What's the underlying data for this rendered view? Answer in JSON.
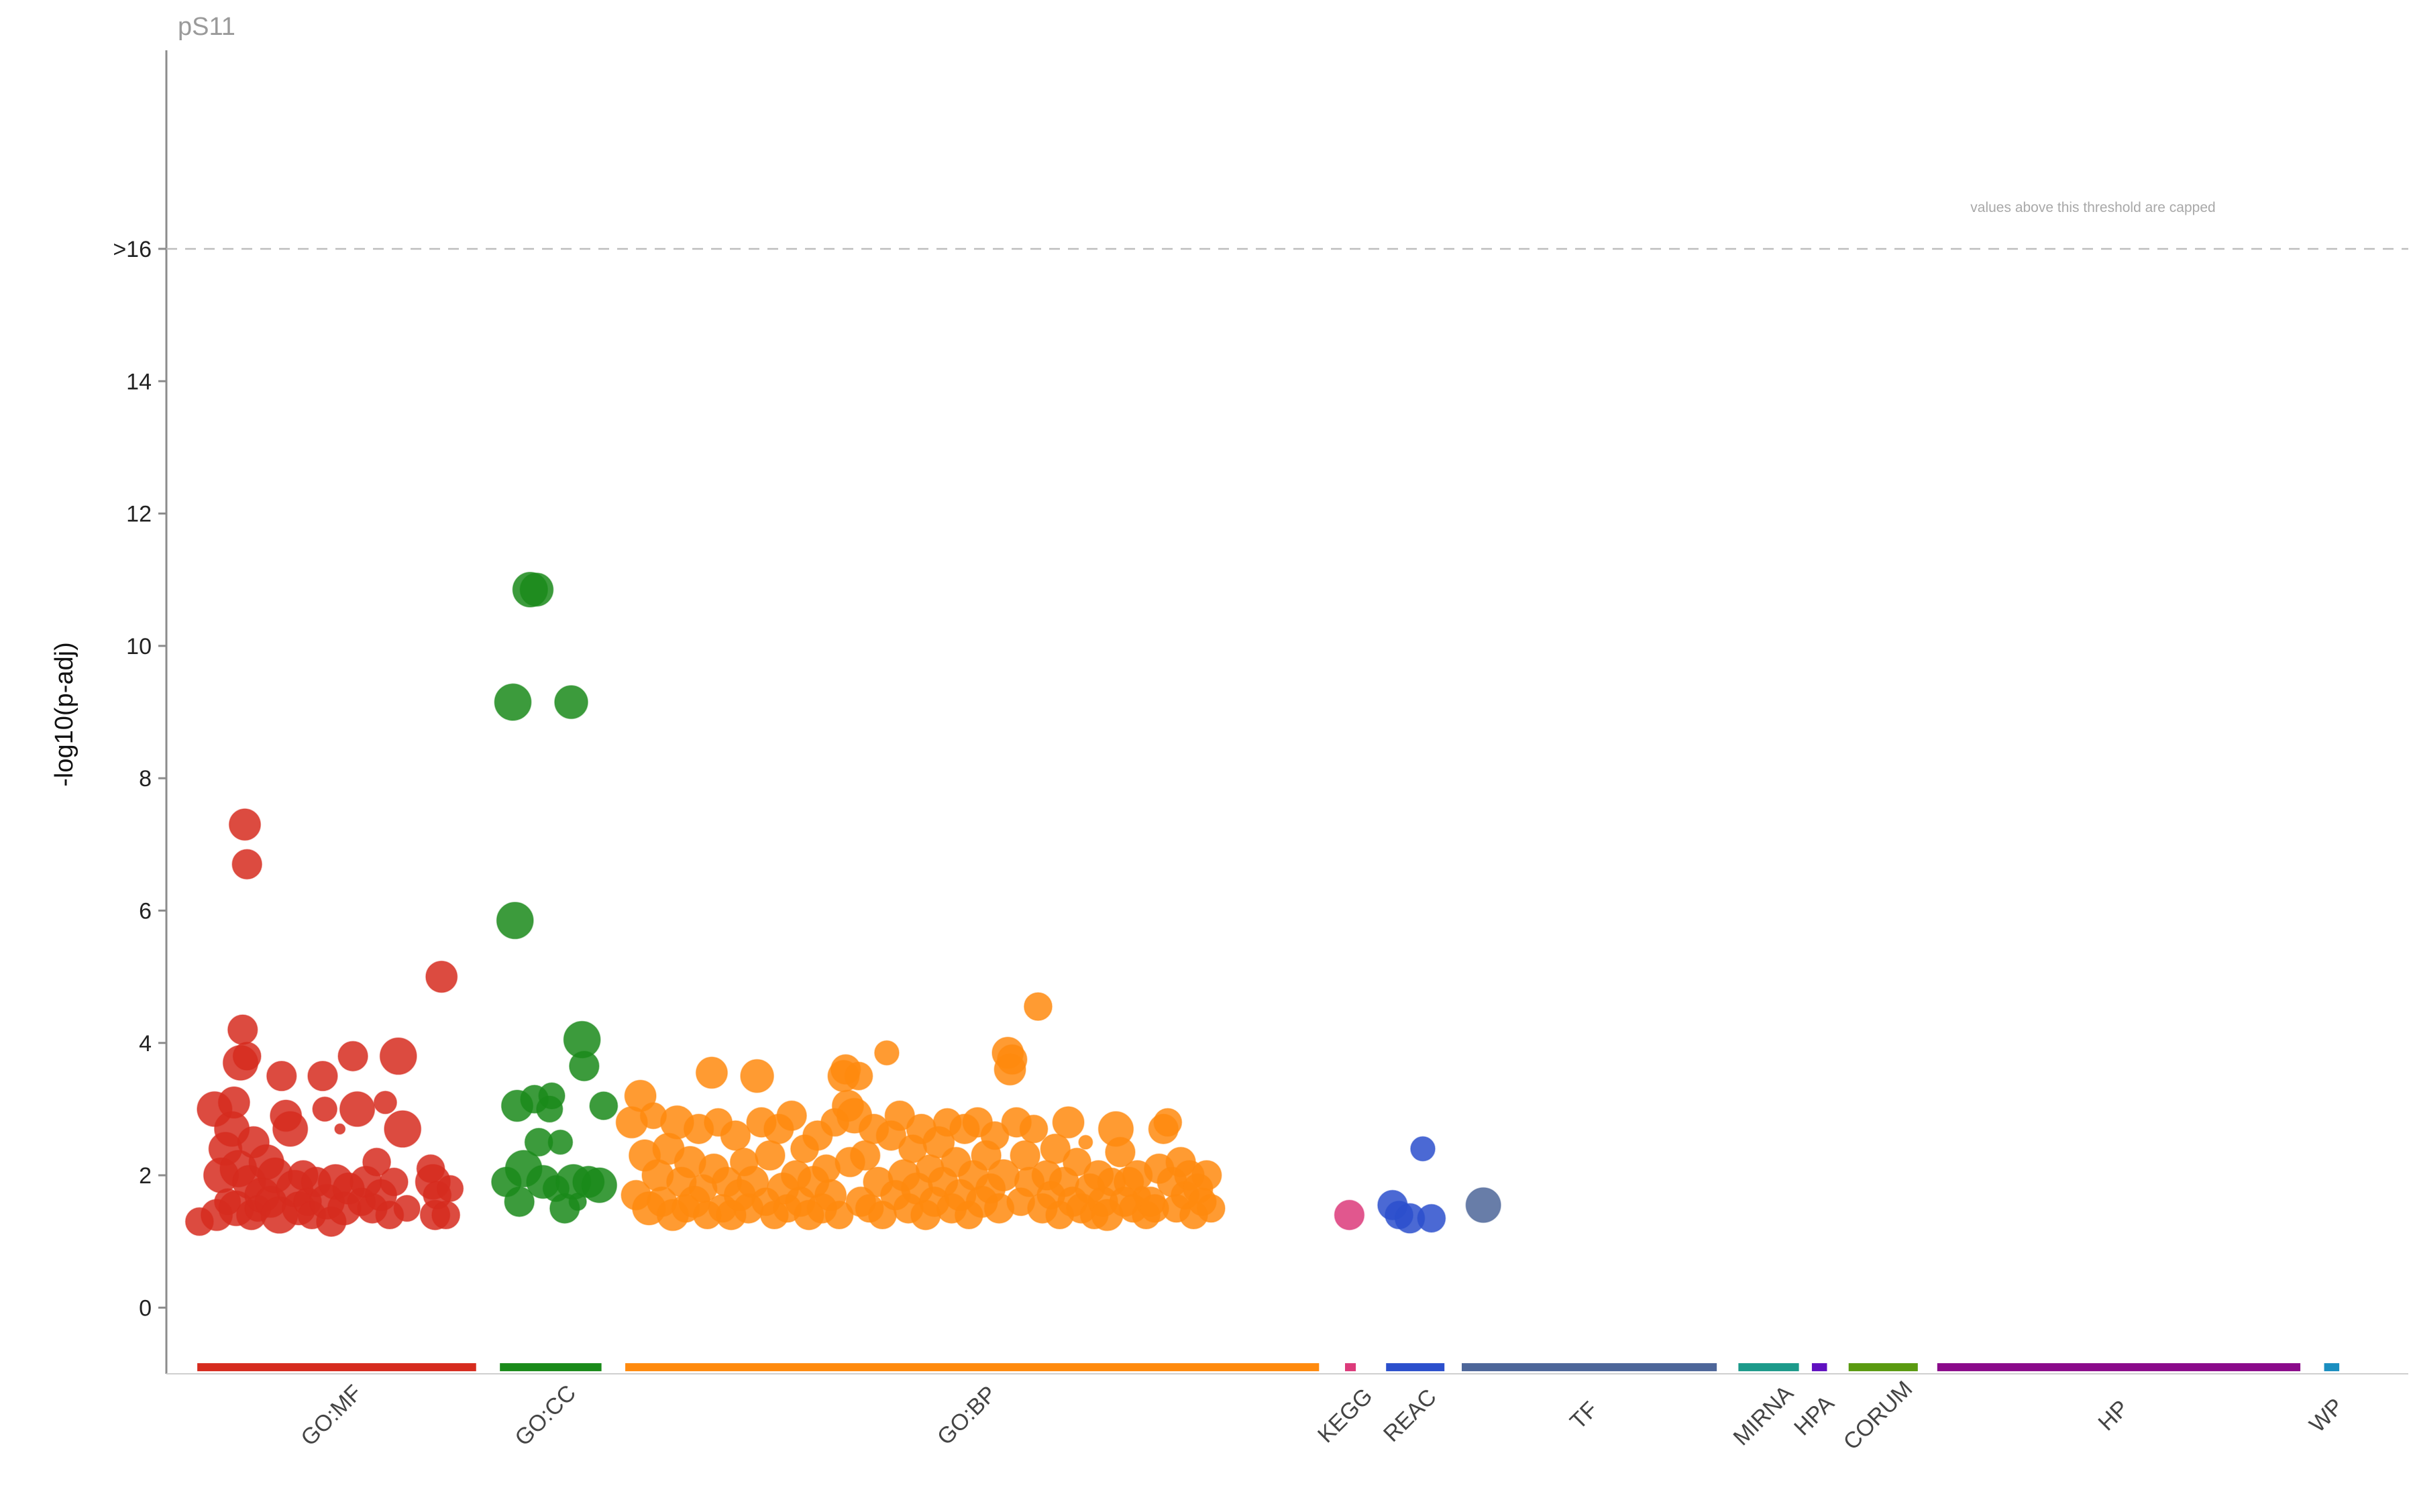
{
  "chart_data": {
    "type": "scatter",
    "title": "pS11",
    "ylabel": "-log10(p-adj)",
    "xlabel": "",
    "ylim": [
      -1,
      19
    ],
    "y_ticks": [
      0,
      2,
      4,
      6,
      8,
      10,
      12,
      14,
      16
    ],
    "y_tick_labels": [
      "0",
      "2",
      "4",
      "6",
      "8",
      "10",
      "12",
      "14",
      ">16"
    ],
    "threshold": 16,
    "threshold_note": "values above this threshold are capped",
    "grid": false,
    "legend": "none",
    "x_axis": "term position grouped by source (0-100)",
    "sources": [
      {
        "name": "GO:MF",
        "color": "#d62b1e",
        "start": 0.5,
        "end": 13.4
      },
      {
        "name": "GO:CC",
        "color": "#1a8a1a",
        "start": 14.5,
        "end": 19.2
      },
      {
        "name": "GO:BP",
        "color": "#ff8a0e",
        "start": 20.3,
        "end": 52.4
      },
      {
        "name": "KEGG",
        "color": "#dc3a7a",
        "start": 53.6,
        "end": 54.1
      },
      {
        "name": "REAC",
        "color": "#2b4fcc",
        "start": 55.5,
        "end": 58.2
      },
      {
        "name": "TF",
        "color": "#4d6699",
        "start": 59.0,
        "end": 70.8
      },
      {
        "name": "MIRNA",
        "color": "#1c9a8a",
        "start": 71.8,
        "end": 74.6
      },
      {
        "name": "HPA",
        "color": "#6010c0",
        "start": 75.2,
        "end": 75.9
      },
      {
        "name": "CORUM",
        "color": "#5a9a10",
        "start": 76.9,
        "end": 80.1
      },
      {
        "name": "HP",
        "color": "#8a0a8a",
        "start": 81.0,
        "end": 97.8
      },
      {
        "name": "WP",
        "color": "#1a8ec0",
        "start": 98.9,
        "end": 99.6
      }
    ],
    "series": [
      {
        "name": "GO:MF",
        "points": [
          [
            0.6,
            1.3,
            1.6
          ],
          [
            1.3,
            3.0,
            2.0
          ],
          [
            1.4,
            1.4,
            1.8
          ],
          [
            1.6,
            2.0,
            2.0
          ],
          [
            1.8,
            2.4,
            1.9
          ],
          [
            1.9,
            1.6,
            1.5
          ],
          [
            2.1,
            2.7,
            2.0
          ],
          [
            2.2,
            3.1,
            1.8
          ],
          [
            2.3,
            1.5,
            2.0
          ],
          [
            2.4,
            2.1,
            2.1
          ],
          [
            2.5,
            3.7,
            2.0
          ],
          [
            2.6,
            4.2,
            1.7
          ],
          [
            2.7,
            7.3,
            1.8
          ],
          [
            2.8,
            6.7,
            1.7
          ],
          [
            2.8,
            3.8,
            1.6
          ],
          [
            2.9,
            1.9,
            1.9
          ],
          [
            3.0,
            1.4,
            1.7
          ],
          [
            3.1,
            2.5,
            1.8
          ],
          [
            3.3,
            1.5,
            1.5
          ],
          [
            3.5,
            1.7,
            2.0
          ],
          [
            3.7,
            2.2,
            2.0
          ],
          [
            3.9,
            1.6,
            1.8
          ],
          [
            4.1,
            2.0,
            2.0
          ],
          [
            4.3,
            1.4,
            2.1
          ],
          [
            4.4,
            3.5,
            1.7
          ],
          [
            4.6,
            2.9,
            1.8
          ],
          [
            4.8,
            2.7,
            2.0
          ],
          [
            5.0,
            1.8,
            2.1
          ],
          [
            5.2,
            1.5,
            1.9
          ],
          [
            5.4,
            2.0,
            1.7
          ],
          [
            5.6,
            1.6,
            1.6
          ],
          [
            5.8,
            1.4,
            1.6
          ],
          [
            6.0,
            1.9,
            1.7
          ],
          [
            6.3,
            3.5,
            1.7
          ],
          [
            6.4,
            3.0,
            1.4
          ],
          [
            6.5,
            1.6,
            2.0
          ],
          [
            6.7,
            1.3,
            1.7
          ],
          [
            6.9,
            1.9,
            2.0
          ],
          [
            7.1,
            2.7,
            0.6
          ],
          [
            7.3,
            1.5,
            1.9
          ],
          [
            7.5,
            1.8,
            1.8
          ],
          [
            7.7,
            3.8,
            1.7
          ],
          [
            7.9,
            3.0,
            2.0
          ],
          [
            8.1,
            1.6,
            1.6
          ],
          [
            8.3,
            1.9,
            1.8
          ],
          [
            8.6,
            1.5,
            1.7
          ],
          [
            8.8,
            2.2,
            1.6
          ],
          [
            9.0,
            1.7,
            1.8
          ],
          [
            9.2,
            3.1,
            1.3
          ],
          [
            9.4,
            1.4,
            1.6
          ],
          [
            9.6,
            1.9,
            1.6
          ],
          [
            9.8,
            3.8,
            2.1
          ],
          [
            10.0,
            2.7,
            2.1
          ],
          [
            10.2,
            1.5,
            1.5
          ],
          [
            11.3,
            2.1,
            1.6
          ],
          [
            11.4,
            1.9,
            2.0
          ],
          [
            11.5,
            1.4,
            1.7
          ],
          [
            11.6,
            1.7,
            1.6
          ],
          [
            11.8,
            5.0,
            1.8
          ],
          [
            12.0,
            1.4,
            1.6
          ],
          [
            12.2,
            1.8,
            1.5
          ]
        ]
      },
      {
        "name": "GO:CC",
        "points": [
          [
            14.8,
            1.9,
            1.7
          ],
          [
            15.1,
            9.15,
            2.1
          ],
          [
            15.2,
            5.85,
            2.1
          ],
          [
            15.3,
            3.05,
            1.8
          ],
          [
            15.4,
            1.6,
            1.7
          ],
          [
            15.6,
            2.1,
            2.1
          ],
          [
            15.9,
            10.85,
            2.0
          ],
          [
            16.1,
            3.15,
            1.6
          ],
          [
            16.2,
            10.85,
            1.9
          ],
          [
            16.3,
            2.5,
            1.6
          ],
          [
            16.5,
            1.9,
            1.9
          ],
          [
            16.8,
            3.0,
            1.5
          ],
          [
            16.9,
            3.2,
            1.5
          ],
          [
            17.1,
            1.8,
            1.5
          ],
          [
            17.3,
            2.5,
            1.4
          ],
          [
            17.5,
            1.5,
            1.7
          ],
          [
            17.8,
            9.15,
            1.9
          ],
          [
            17.9,
            1.9,
            2.0
          ],
          [
            18.1,
            1.6,
            1.0
          ],
          [
            18.3,
            4.05,
            2.1
          ],
          [
            18.4,
            3.65,
            1.7
          ],
          [
            18.6,
            1.9,
            1.8
          ],
          [
            19.1,
            1.85,
            2.0
          ],
          [
            19.3,
            3.05,
            1.6
          ]
        ]
      },
      {
        "name": "GO:BP",
        "points": [
          [
            20.6,
            2.8,
            1.8
          ],
          [
            20.8,
            1.7,
            1.7
          ],
          [
            21.0,
            3.2,
            1.8
          ],
          [
            21.2,
            2.3,
            1.8
          ],
          [
            21.4,
            1.5,
            1.9
          ],
          [
            21.6,
            2.9,
            1.5
          ],
          [
            21.8,
            2.0,
            1.8
          ],
          [
            22.0,
            1.6,
            1.7
          ],
          [
            22.3,
            2.4,
            1.8
          ],
          [
            22.5,
            1.4,
            1.8
          ],
          [
            22.7,
            2.8,
            1.9
          ],
          [
            22.9,
            1.9,
            1.7
          ],
          [
            23.1,
            1.5,
            1.6
          ],
          [
            23.3,
            2.2,
            1.8
          ],
          [
            23.5,
            1.6,
            1.8
          ],
          [
            23.7,
            2.7,
            1.7
          ],
          [
            23.9,
            1.8,
            1.6
          ],
          [
            24.1,
            1.4,
            1.6
          ],
          [
            24.3,
            3.55,
            1.8
          ],
          [
            24.4,
            2.1,
            1.7
          ],
          [
            24.6,
            2.8,
            1.6
          ],
          [
            24.8,
            1.5,
            1.6
          ],
          [
            25.0,
            1.9,
            1.7
          ],
          [
            25.2,
            1.4,
            1.7
          ],
          [
            25.4,
            2.6,
            1.7
          ],
          [
            25.6,
            1.7,
            1.8
          ],
          [
            25.8,
            2.2,
            1.6
          ],
          [
            26.0,
            1.5,
            1.7
          ],
          [
            26.2,
            1.9,
            1.8
          ],
          [
            26.4,
            3.5,
            1.9
          ],
          [
            26.6,
            2.8,
            1.7
          ],
          [
            26.8,
            1.6,
            1.6
          ],
          [
            27.0,
            2.3,
            1.7
          ],
          [
            27.2,
            1.4,
            1.6
          ],
          [
            27.4,
            2.7,
            1.7
          ],
          [
            27.6,
            1.8,
            1.8
          ],
          [
            27.8,
            1.5,
            1.6
          ],
          [
            28.0,
            2.9,
            1.7
          ],
          [
            28.2,
            2.0,
            1.7
          ],
          [
            28.4,
            1.6,
            1.7
          ],
          [
            28.6,
            2.4,
            1.6
          ],
          [
            28.8,
            1.4,
            1.7
          ],
          [
            29.0,
            1.9,
            1.8
          ],
          [
            29.2,
            2.6,
            1.7
          ],
          [
            29.4,
            1.5,
            1.7
          ],
          [
            29.6,
            2.1,
            1.6
          ],
          [
            29.8,
            1.7,
            1.8
          ],
          [
            30.0,
            2.8,
            1.6
          ],
          [
            30.2,
            1.4,
            1.6
          ],
          [
            30.4,
            3.5,
            1.8
          ],
          [
            30.5,
            3.6,
            1.7
          ],
          [
            30.6,
            3.05,
            1.8
          ],
          [
            30.7,
            2.2,
            1.7
          ],
          [
            30.9,
            2.9,
            2.0
          ],
          [
            31.1,
            3.5,
            1.6
          ],
          [
            31.2,
            1.6,
            1.7
          ],
          [
            31.4,
            2.3,
            1.7
          ],
          [
            31.6,
            1.5,
            1.6
          ],
          [
            31.8,
            2.7,
            1.7
          ],
          [
            32.0,
            1.9,
            1.7
          ],
          [
            32.2,
            1.4,
            1.6
          ],
          [
            32.4,
            3.85,
            1.4
          ],
          [
            32.6,
            2.6,
            1.7
          ],
          [
            32.8,
            1.7,
            1.7
          ],
          [
            33.0,
            2.9,
            1.7
          ],
          [
            33.2,
            2.0,
            1.8
          ],
          [
            33.4,
            1.5,
            1.7
          ],
          [
            33.6,
            2.4,
            1.6
          ],
          [
            33.8,
            1.8,
            1.8
          ],
          [
            34.0,
            2.7,
            1.7
          ],
          [
            34.2,
            1.4,
            1.7
          ],
          [
            34.4,
            2.1,
            1.6
          ],
          [
            34.6,
            1.6,
            1.7
          ],
          [
            34.8,
            2.5,
            1.8
          ],
          [
            35.0,
            1.9,
            1.7
          ],
          [
            35.2,
            2.8,
            1.6
          ],
          [
            35.4,
            1.5,
            1.7
          ],
          [
            35.6,
            2.2,
            1.7
          ],
          [
            35.8,
            1.7,
            1.8
          ],
          [
            36.0,
            2.7,
            1.7
          ],
          [
            36.2,
            1.4,
            1.6
          ],
          [
            36.4,
            2.0,
            1.7
          ],
          [
            36.6,
            2.8,
            1.7
          ],
          [
            36.8,
            1.6,
            1.8
          ],
          [
            37.0,
            2.3,
            1.7
          ],
          [
            37.2,
            1.8,
            1.7
          ],
          [
            37.4,
            2.6,
            1.6
          ],
          [
            37.6,
            1.5,
            1.7
          ],
          [
            37.8,
            2.0,
            1.8
          ],
          [
            38.0,
            3.85,
            1.8
          ],
          [
            38.1,
            3.6,
            1.8
          ],
          [
            38.2,
            3.75,
            1.7
          ],
          [
            38.4,
            2.8,
            1.7
          ],
          [
            38.6,
            1.6,
            1.6
          ],
          [
            38.8,
            2.3,
            1.7
          ],
          [
            39.0,
            1.9,
            1.7
          ],
          [
            39.2,
            2.7,
            1.6
          ],
          [
            39.4,
            4.55,
            1.6
          ],
          [
            39.6,
            1.5,
            1.7
          ],
          [
            39.8,
            2.0,
            1.7
          ],
          [
            40.0,
            1.7,
            1.6
          ],
          [
            40.2,
            2.4,
            1.7
          ],
          [
            40.4,
            1.4,
            1.6
          ],
          [
            40.6,
            1.9,
            1.7
          ],
          [
            40.8,
            2.8,
            1.8
          ],
          [
            41.0,
            1.6,
            1.7
          ],
          [
            41.2,
            2.2,
            1.6
          ],
          [
            41.4,
            1.5,
            1.7
          ],
          [
            41.6,
            2.5,
            0.8
          ],
          [
            41.8,
            1.8,
            1.7
          ],
          [
            42.0,
            1.4,
            1.6
          ],
          [
            42.2,
            2.0,
            1.7
          ],
          [
            42.4,
            1.6,
            1.7
          ],
          [
            42.6,
            1.4,
            1.8
          ],
          [
            42.8,
            1.9,
            1.6
          ],
          [
            43.0,
            2.7,
            2.0
          ],
          [
            43.2,
            2.35,
            1.7
          ],
          [
            43.4,
            1.6,
            1.7
          ],
          [
            43.6,
            1.9,
            1.7
          ],
          [
            43.8,
            1.5,
            1.6
          ],
          [
            44.0,
            2.0,
            1.7
          ],
          [
            44.2,
            1.7,
            1.0
          ],
          [
            44.4,
            1.4,
            1.6
          ],
          [
            44.6,
            1.6,
            1.7
          ],
          [
            44.8,
            1.5,
            1.6
          ],
          [
            45.0,
            2.1,
            1.7
          ],
          [
            45.2,
            2.7,
            1.7
          ],
          [
            45.4,
            2.8,
            1.6
          ],
          [
            45.6,
            1.9,
            1.7
          ],
          [
            45.8,
            1.5,
            1.6
          ],
          [
            46.0,
            2.2,
            1.7
          ],
          [
            46.2,
            1.7,
            1.6
          ],
          [
            46.4,
            2.0,
            1.7
          ],
          [
            46.6,
            1.4,
            1.6
          ],
          [
            46.8,
            1.8,
            1.7
          ],
          [
            47.0,
            1.6,
            1.6
          ],
          [
            47.2,
            2.0,
            1.7
          ],
          [
            47.4,
            1.5,
            1.6
          ]
        ]
      },
      {
        "name": "KEGG",
        "points": [
          [
            53.8,
            1.4,
            1.7
          ]
        ]
      },
      {
        "name": "REAC",
        "points": [
          [
            55.8,
            1.55,
            1.7
          ],
          [
            56.1,
            1.4,
            1.6
          ],
          [
            56.6,
            1.35,
            1.7
          ],
          [
            57.2,
            2.4,
            1.4
          ],
          [
            57.6,
            1.35,
            1.6
          ]
        ]
      },
      {
        "name": "TF",
        "points": [
          [
            60.0,
            1.55,
            2.0
          ]
        ]
      }
    ]
  }
}
